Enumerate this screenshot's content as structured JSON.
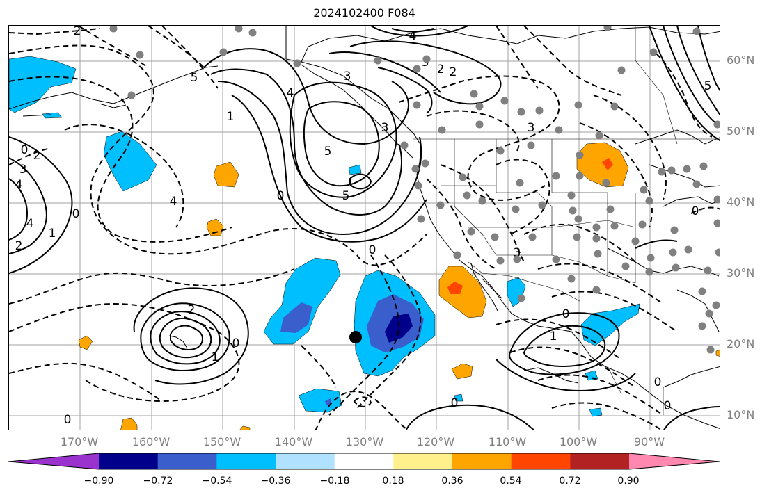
{
  "title": "2024102400 F084",
  "lat_labels": [
    "60°N",
    "50°N",
    "40°N",
    "30°N",
    "20°N",
    "10°N"
  ],
  "lon_labels": [
    "170°W",
    "160°W",
    "150°W",
    "140°W",
    "130°W",
    "120°W",
    "110°W",
    "100°W",
    "90°W"
  ],
  "contour_labels": [
    "2",
    "4",
    "3",
    "2",
    "2",
    "3",
    "5",
    "4",
    "3",
    "3",
    "1",
    "4",
    "5",
    "5",
    "0",
    "0",
    "4",
    "0",
    "1",
    "2",
    "3",
    "4",
    "2",
    "0",
    "2",
    "1",
    "0",
    "0",
    "0",
    "0",
    "3",
    "0",
    "1",
    "0",
    "0",
    "5"
  ],
  "colorbar": {
    "ticks": [
      "−0.90",
      "−0.72",
      "−0.54",
      "−0.36",
      "−0.18",
      "0.18",
      "0.36",
      "0.54",
      "0.72",
      "0.90"
    ],
    "colors": [
      "#9a32cd",
      "#00008b",
      "#3a5fcd",
      "#00bfff",
      "#b0e2ff",
      "#ffffff",
      "#fff08c",
      "#ffa500",
      "#ff4500",
      "#b22222",
      "#ff88b0"
    ]
  },
  "colors": {
    "coast": "#000000",
    "grid": "#a0a0a0",
    "station": "#808080",
    "marker": "#000000"
  }
}
